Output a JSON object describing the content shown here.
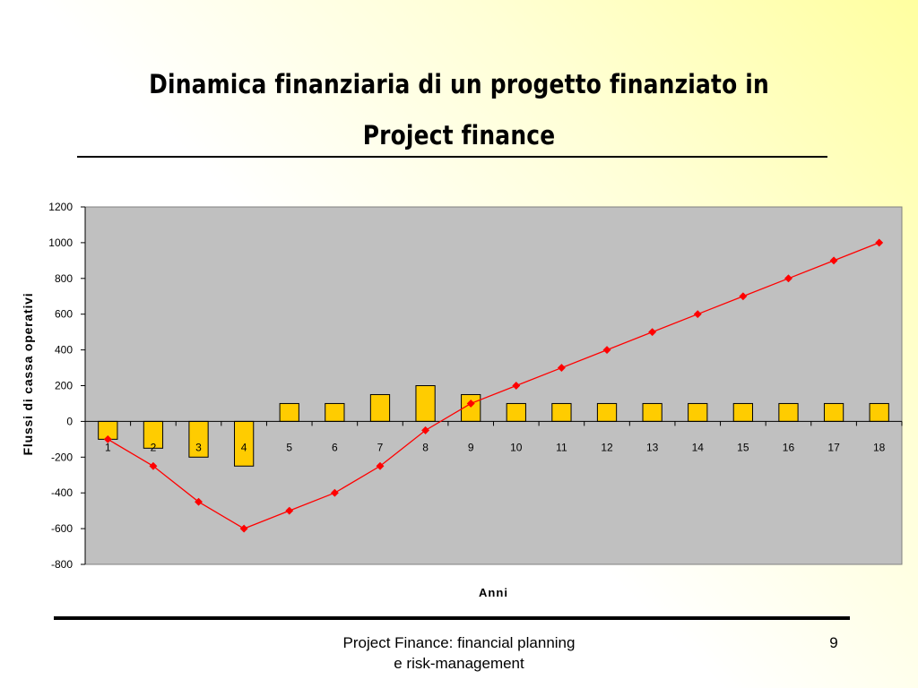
{
  "slide": {
    "title_line1": "Dinamica finanziaria di un progetto finanziato in",
    "title_line2": "Project finance",
    "footer_line1": "Project Finance: financial planning",
    "footer_line2": "e risk-management",
    "page_number": "9"
  },
  "colors": {
    "plot_area": "#c0c0c0",
    "bars": "#ffcc00",
    "line": "#ff0000",
    "background_accent": "#ffffa0"
  },
  "chart_data": {
    "type": "bar",
    "title": "",
    "xlabel": "Anni",
    "ylabel": "Flussi di cassa operativi",
    "ylim": [
      -800,
      1200
    ],
    "yticks": [
      1200,
      1000,
      800,
      600,
      400,
      200,
      0,
      -200,
      -400,
      -600,
      -800
    ],
    "categories": [
      "1",
      "2",
      "3",
      "4",
      "5",
      "6",
      "7",
      "8",
      "9",
      "10",
      "11",
      "12",
      "13",
      "14",
      "15",
      "16",
      "17",
      "18"
    ],
    "grid": false,
    "legend": "none",
    "series": [
      {
        "type": "bar",
        "values": [
          -100,
          -150,
          -200,
          -250,
          100,
          100,
          150,
          200,
          150,
          100,
          100,
          100,
          100,
          100,
          100,
          100,
          100,
          100
        ]
      },
      {
        "type": "line",
        "marker": "diamond",
        "values": [
          -100,
          -250,
          -450,
          -600,
          -500,
          -400,
          -250,
          -50,
          100,
          200,
          300,
          400,
          500,
          600,
          700,
          800,
          900,
          1000
        ]
      }
    ]
  }
}
